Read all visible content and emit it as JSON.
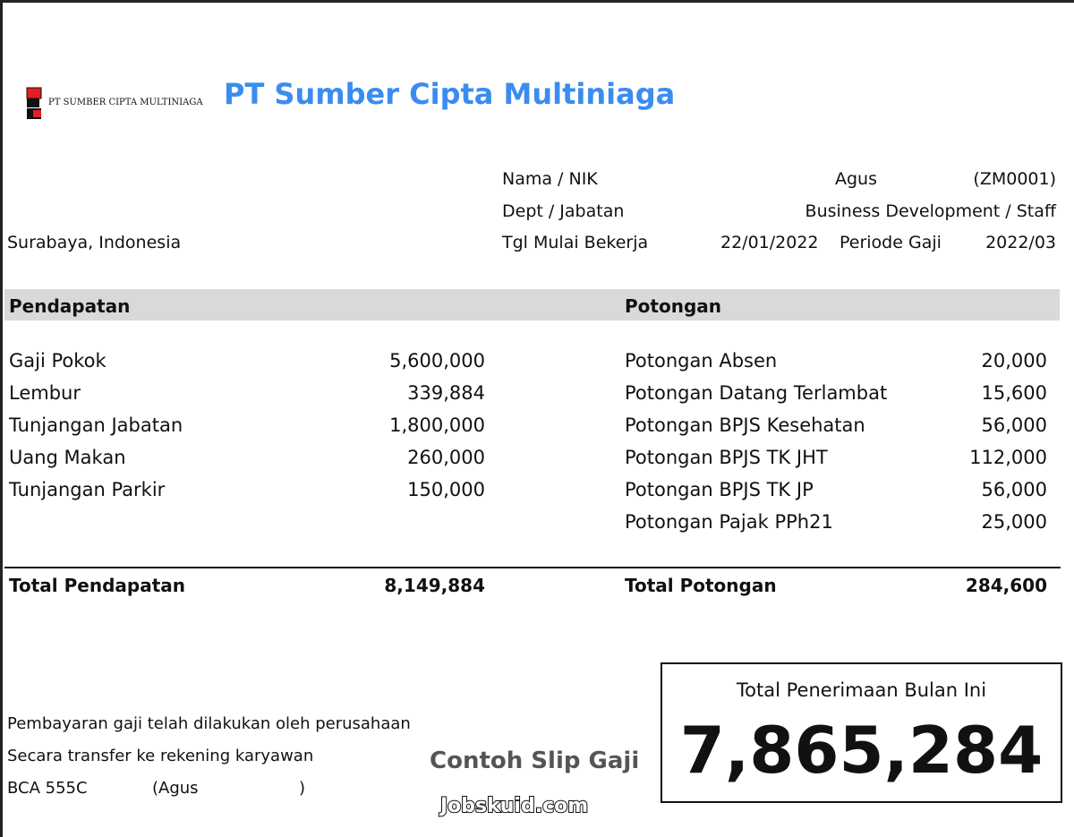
{
  "company": {
    "logo_text": "PT SUMBER CIPTA MULTINIAGA",
    "title": "PT Sumber Cipta Multiniaga",
    "location": "Surabaya, Indonesia",
    "title_color": "#3b8cf0"
  },
  "employee": {
    "name_label": "Nama / NIK",
    "name": "Agus",
    "nik": "(ZM0001)",
    "dept_label": "Dept / Jabatan",
    "dept": "Business Development / Staff",
    "start_label": "Tgl Mulai Bekerja",
    "start_date": "22/01/2022",
    "period_label": "Periode Gaji",
    "period": "2022/03"
  },
  "income": {
    "header": "Pendapatan",
    "items": [
      {
        "label": "Gaji Pokok",
        "value": "5,600,000"
      },
      {
        "label": "Lembur",
        "value": "339,884"
      },
      {
        "label": "Tunjangan Jabatan",
        "value": "1,800,000"
      },
      {
        "label": "Uang Makan",
        "value": "260,000"
      },
      {
        "label": "Tunjangan Parkir",
        "value": "150,000"
      }
    ],
    "total_label": "Total Pendapatan",
    "total": "8,149,884"
  },
  "deductions": {
    "header": "Potongan",
    "items": [
      {
        "label": "Potongan Absen",
        "value": "20,000"
      },
      {
        "label": "Potongan Datang Terlambat",
        "value": "15,600"
      },
      {
        "label": "Potongan BPJS Kesehatan",
        "value": "56,000"
      },
      {
        "label": "Potongan BPJS TK JHT",
        "value": "112,000"
      },
      {
        "label": "Potongan BPJS TK JP",
        "value": "56,000"
      },
      {
        "label": "Potongan Pajak PPh21",
        "value": "25,000"
      }
    ],
    "total_label": "Total Potongan",
    "total": "284,600"
  },
  "net": {
    "label": "Total Penerimaan Bulan Ini",
    "value": "7,865,284"
  },
  "footer": {
    "line1": "Pembayaran gaji telah dilakukan oleh perusahaan",
    "line2": "Secara transfer ke rekening karyawan",
    "bank": "BCA 555C",
    "account_name": "(Agus",
    "close_paren": ")"
  },
  "watermark": {
    "line1": "Contoh Slip Gaji",
    "line2": "Jobskuid.com"
  }
}
